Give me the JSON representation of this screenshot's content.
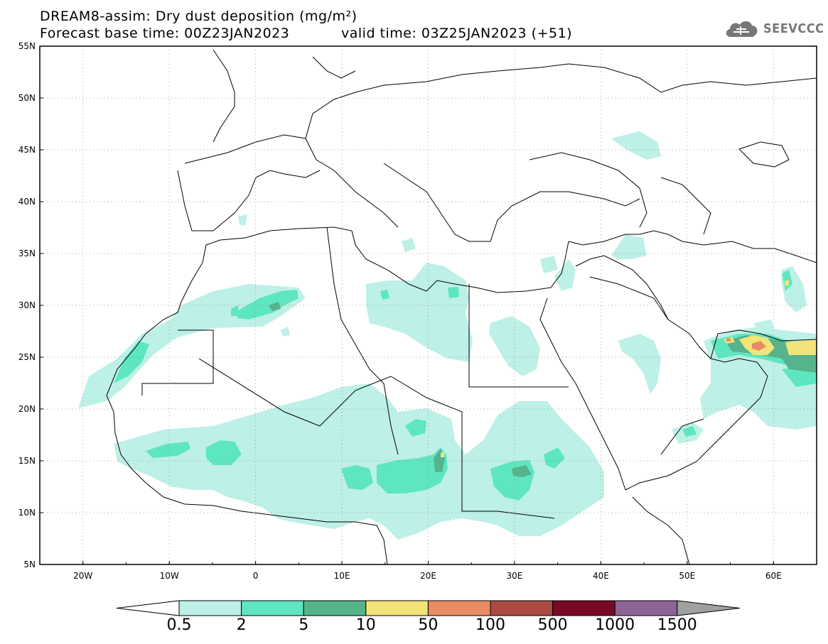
{
  "title": {
    "line1": "DREAM8-assim: Dry dust deposition (mg/m²)",
    "line2": "Forecast base time: 00Z23JAN2023",
    "line2_valid": "valid time: 03Z25JAN2023 (+51)"
  },
  "logo": {
    "text": "SEEVCCC",
    "icon": "cloud-icon"
  },
  "axes": {
    "lon_ticks": [
      "20W",
      "10W",
      "0",
      "10E",
      "20E",
      "30E",
      "40E",
      "50E",
      "60E"
    ],
    "lat_ticks": [
      "55N",
      "50N",
      "45N",
      "40N",
      "35N",
      "30N",
      "25N",
      "20N",
      "15N",
      "10N",
      "5N"
    ],
    "lon_range": [
      -25,
      65
    ],
    "lat_range": [
      5,
      55
    ],
    "grid": "dotted every 10° lon / 5° lat"
  },
  "colorbar": {
    "labels": [
      "0.5",
      "2",
      "5",
      "10",
      "50",
      "100",
      "500",
      "1000",
      "1500"
    ],
    "colors": [
      "#bdf0e6",
      "#5ee6c0",
      "#55b48c",
      "#f2e478",
      "#e88c64",
      "#aa4b41",
      "#780a28",
      "#8c6496",
      "#a0a0a0"
    ],
    "low_arrow_color": "#ffffff",
    "high_arrow_color": "#a0a0a0"
  }
}
